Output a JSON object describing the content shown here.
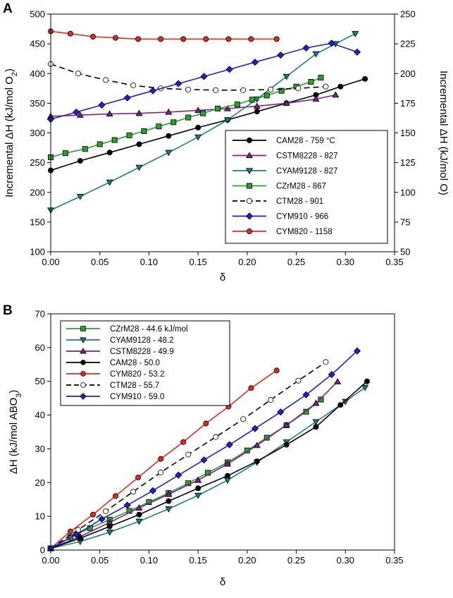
{
  "chart_data": [
    {
      "panel": "A",
      "type": "line",
      "ylabel_left": "Incremental ΔH (kJ/mol O2)",
      "ylabel_right": "Incremental ΔH (kJ/mol O)",
      "xlabel": "δ",
      "xlim": [
        0,
        0.35
      ],
      "ylim": [
        100,
        500
      ],
      "ylim_right": [
        50,
        250
      ],
      "xticks": [
        "0.00",
        "0.05",
        "0.10",
        "0.15",
        "0.20",
        "0.25",
        "0.30",
        "0.35"
      ],
      "yticks": [
        "100",
        "150",
        "200",
        "250",
        "300",
        "350",
        "400",
        "450",
        "500"
      ],
      "yticks_right": [
        "50",
        "75",
        "100",
        "125",
        "150",
        "175",
        "200",
        "225",
        "250"
      ],
      "legend_position": "lower-right",
      "series": [
        {
          "name": "CAM28 - 759 °C",
          "color": "#000000",
          "dash": false,
          "marker": "circle",
          "fill": "#000000",
          "x": [
            0.0,
            0.03,
            0.06,
            0.09,
            0.12,
            0.15,
            0.18,
            0.21,
            0.24,
            0.27,
            0.295,
            0.32
          ],
          "y": [
            237,
            253,
            267,
            281,
            295,
            309,
            322,
            336,
            350,
            364,
            378,
            391
          ]
        },
        {
          "name": "CSTM8228 - 827",
          "color": "#7b1f8c",
          "dash": false,
          "marker": "triangle-up",
          "fill": "#7b1f8c",
          "x": [
            0.0,
            0.03,
            0.06,
            0.09,
            0.12,
            0.15,
            0.18,
            0.21,
            0.24,
            0.27,
            0.29
          ],
          "y": [
            328,
            330,
            332,
            333,
            335,
            338,
            341,
            345,
            350,
            357,
            364
          ]
        },
        {
          "name": "CYAM9128 - 827",
          "color": "#17807e",
          "dash": false,
          "marker": "triangle-down",
          "fill": "#17807e",
          "x": [
            0.0,
            0.03,
            0.06,
            0.09,
            0.12,
            0.15,
            0.18,
            0.21,
            0.24,
            0.27,
            0.29,
            0.31
          ],
          "y": [
            170,
            193,
            217,
            242,
            267,
            293,
            322,
            357,
            395,
            433,
            450,
            467
          ]
        },
        {
          "name": "CZrM28 - 867",
          "color": "#2ca02c",
          "dash": false,
          "marker": "square",
          "fill": "#2ca02c",
          "x": [
            0.0,
            0.015,
            0.035,
            0.05,
            0.065,
            0.08,
            0.095,
            0.11,
            0.125,
            0.14,
            0.155,
            0.17,
            0.19,
            0.205,
            0.22,
            0.235,
            0.25,
            0.265,
            0.275
          ],
          "y": [
            259,
            266,
            273,
            281,
            288,
            296,
            303,
            311,
            318,
            326,
            333,
            341,
            348,
            356,
            363,
            371,
            378,
            386,
            393
          ]
        },
        {
          "name": "CTM28 - 901",
          "color": "#000000",
          "dash": true,
          "marker": "circle",
          "fill": "#ffffff",
          "x": [
            0.0,
            0.028,
            0.056,
            0.084,
            0.112,
            0.14,
            0.168,
            0.196,
            0.224,
            0.252,
            0.28
          ],
          "y": [
            416,
            400,
            389,
            380,
            375,
            373,
            372,
            372,
            373,
            375,
            378
          ]
        },
        {
          "name": "CYM910 - 966",
          "color": "#1f1fd6",
          "dash": false,
          "marker": "diamond",
          "fill": "#1f1fd6",
          "x": [
            0.0,
            0.026,
            0.052,
            0.078,
            0.104,
            0.13,
            0.156,
            0.182,
            0.208,
            0.234,
            0.26,
            0.286,
            0.312
          ],
          "y": [
            323,
            335,
            347,
            359,
            371,
            383,
            395,
            407,
            419,
            431,
            443,
            451,
            436
          ]
        },
        {
          "name": "CYM820 - 1158",
          "color": "#e02b1f",
          "dash": false,
          "marker": "circle",
          "fill": "#e02b1f",
          "x": [
            0.0,
            0.02,
            0.043,
            0.066,
            0.089,
            0.112,
            0.135,
            0.158,
            0.181,
            0.204,
            0.23
          ],
          "y": [
            471,
            467,
            462,
            460,
            458,
            458,
            458,
            458,
            458,
            458,
            458
          ]
        }
      ]
    },
    {
      "panel": "B",
      "type": "line",
      "ylabel": "ΔH (kJ/mol ABO3)",
      "xlabel": "δ",
      "xlim": [
        0,
        0.35
      ],
      "ylim": [
        0,
        70
      ],
      "xticks": [
        "0.00",
        "0.05",
        "0.10",
        "0.15",
        "0.20",
        "0.25",
        "0.30",
        "0.35"
      ],
      "yticks": [
        "0",
        "10",
        "20",
        "30",
        "40",
        "50",
        "60",
        "70"
      ],
      "legend_position": "top-left",
      "series": [
        {
          "name": "CZrM28 - 44.6 kJ/mol",
          "color": "#2ca02c",
          "dash": false,
          "marker": "square",
          "fill": "#2ca02c",
          "x": [
            0.0,
            0.02,
            0.04,
            0.06,
            0.08,
            0.1,
            0.12,
            0.14,
            0.16,
            0.18,
            0.2,
            0.22,
            0.24,
            0.26,
            0.275
          ],
          "y": [
            0.5,
            3.8,
            6.5,
            9.0,
            11.6,
            14.2,
            16.9,
            19.8,
            22.9,
            26.0,
            29.5,
            33.3,
            37.0,
            41.0,
            44.6
          ]
        },
        {
          "name": "CYAM9128 - 48.2",
          "color": "#17807e",
          "dash": false,
          "marker": "triangle-down",
          "fill": "#17807e",
          "x": [
            0.0,
            0.03,
            0.06,
            0.09,
            0.12,
            0.15,
            0.18,
            0.21,
            0.24,
            0.27,
            0.3,
            0.32
          ],
          "y": [
            0.5,
            2.5,
            5.3,
            8.5,
            12.2,
            16.2,
            20.7,
            26.0,
            32.0,
            38.0,
            44.0,
            48.2
          ]
        },
        {
          "name": "CSTM8228 - 49.9",
          "color": "#7b1f8c",
          "dash": false,
          "marker": "triangle-up",
          "fill": "#7b1f8c",
          "x": [
            0.0,
            0.03,
            0.06,
            0.09,
            0.12,
            0.15,
            0.18,
            0.21,
            0.24,
            0.27,
            0.292
          ],
          "y": [
            0.5,
            4.0,
            8.2,
            12.5,
            16.5,
            20.7,
            25.5,
            31.0,
            37.0,
            43.5,
            49.9
          ]
        },
        {
          "name": "CAM28 - 50.0",
          "color": "#000000",
          "dash": false,
          "marker": "circle",
          "fill": "#000000",
          "x": [
            0.0,
            0.03,
            0.06,
            0.09,
            0.12,
            0.15,
            0.18,
            0.21,
            0.24,
            0.27,
            0.295,
            0.322
          ],
          "y": [
            0.5,
            3.5,
            7.0,
            10.5,
            14.5,
            18.3,
            22.0,
            26.3,
            31.2,
            36.5,
            43.0,
            50.0
          ]
        },
        {
          "name": "CYM820 - 53.2",
          "color": "#e02b1f",
          "dash": false,
          "marker": "circle",
          "fill": "#e02b1f",
          "x": [
            0.0,
            0.02,
            0.043,
            0.066,
            0.089,
            0.112,
            0.135,
            0.158,
            0.181,
            0.204,
            0.23
          ],
          "y": [
            0.5,
            5.5,
            10.5,
            16.0,
            21.5,
            27.0,
            32.0,
            37.5,
            42.5,
            48.0,
            53.2
          ]
        },
        {
          "name": "CTM28 - 55.7",
          "color": "#000000",
          "dash": true,
          "marker": "circle",
          "fill": "#ffffff",
          "x": [
            0.0,
            0.028,
            0.056,
            0.084,
            0.112,
            0.14,
            0.168,
            0.196,
            0.224,
            0.252,
            0.28
          ],
          "y": [
            0.5,
            6.0,
            11.5,
            17.3,
            23.0,
            28.3,
            33.5,
            38.8,
            44.5,
            50.2,
            55.7
          ]
        },
        {
          "name": "CYM910 - 59.0",
          "color": "#1f1fd6",
          "dash": false,
          "marker": "diamond",
          "fill": "#1f1fd6",
          "x": [
            0.0,
            0.026,
            0.052,
            0.078,
            0.104,
            0.13,
            0.156,
            0.182,
            0.208,
            0.234,
            0.26,
            0.286,
            0.312
          ],
          "y": [
            0.5,
            4.6,
            9.2,
            13.3,
            17.6,
            22.2,
            26.7,
            31.2,
            36.0,
            40.9,
            46.0,
            52.0,
            59.0
          ]
        }
      ]
    }
  ]
}
